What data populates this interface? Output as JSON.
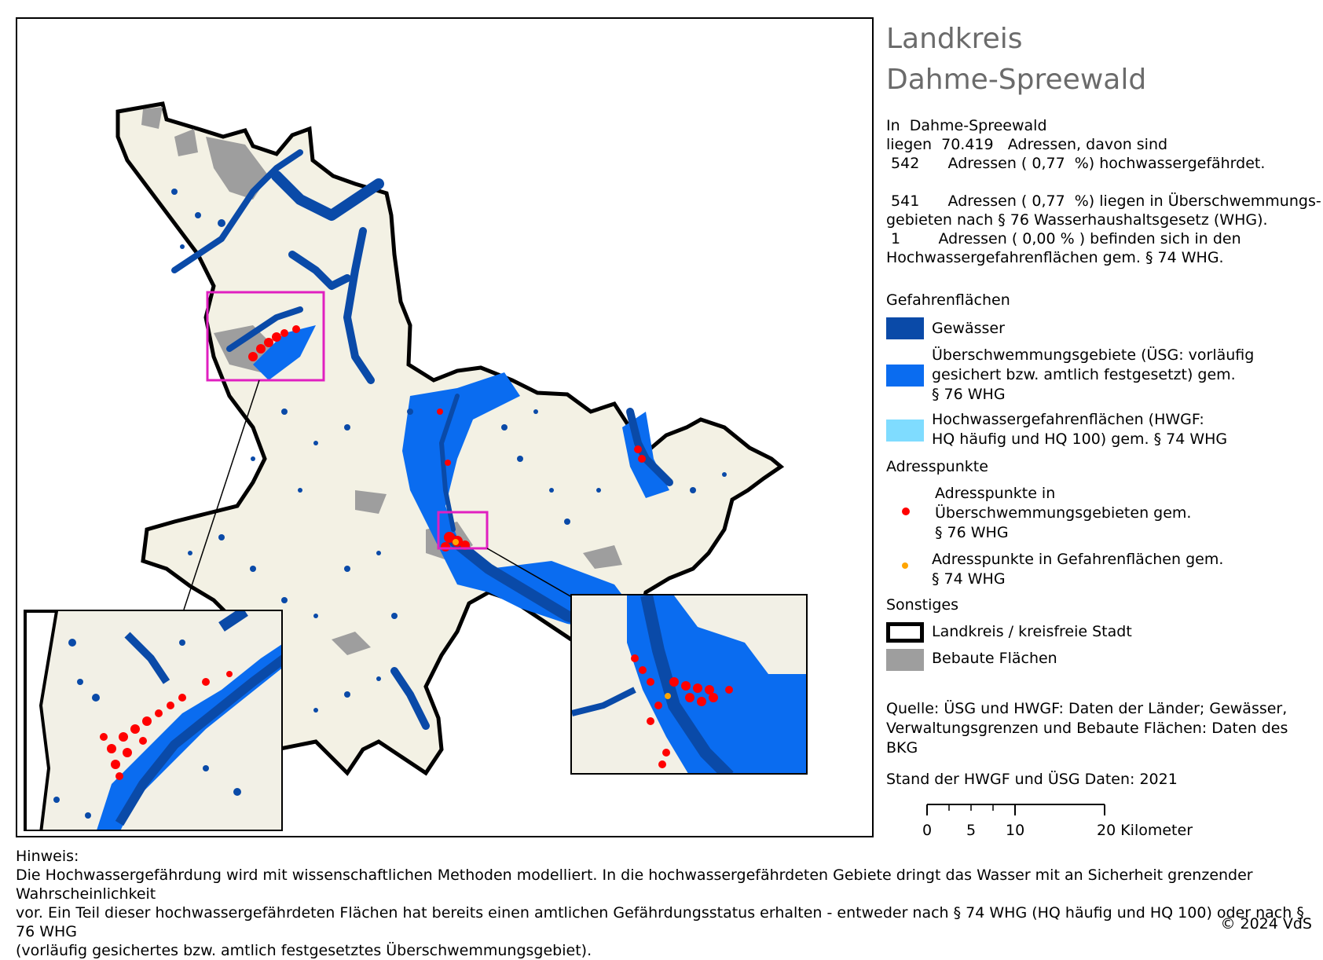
{
  "title": {
    "line1": "Landkreis",
    "line2": "Dahme-Spreewald"
  },
  "stats": {
    "line1": "In  Dahme-Spreewald",
    "line2": "liegen  70.419   Adressen, davon sind",
    "line3": " 542      Adressen ( 0,77  %) hochwassergefährdet.",
    "line4": " 541      Adressen ( 0,77  %) liegen in Überschwemmungs-",
    "line5": "gebieten nach § 76 Wasserhaushaltsgesetz (WHG).",
    "line6": " 1        Adressen ( 0,00 % ) befinden sich in den",
    "line7": "Hochwassergefahrenflächen gem. § 74 WHG."
  },
  "legend": {
    "section_hazard": "Gefahrenflächen",
    "water": "Gewässer",
    "usg_l1": "Überschwemmungsgebiete (ÜSG: vorläufig",
    "usg_l2": "gesichert bzw. amtlich festgesetzt) gem.",
    "usg_l3": "§ 76 WHG",
    "hwgf_l1": "Hochwassergefahrenflächen (HWGF:",
    "hwgf_l2": "HQ häufig und HQ 100) gem. § 74 WHG",
    "section_points": "Adresspunkte",
    "pt_usg_l1": "Adresspunkte in",
    "pt_usg_l2": "Überschwemmungsgebieten gem.",
    "pt_usg_l3": "§ 76 WHG",
    "pt_hwgf_l1": "Adresspunkte in Gefahrenflächen gem.",
    "pt_hwgf_l2": "§ 74 WHG",
    "section_other": "Sonstiges",
    "district": "Landkreis / kreisfreie Stadt",
    "built": "Bebaute Flächen",
    "source_l1": "Quelle: ÜSG und HWGF: Daten der Länder; Gewässer,",
    "source_l2": "Verwaltungsgrenzen und Bebaute Flächen: Daten des BKG",
    "status": "Stand der HWGF und ÜSG Daten:  2021"
  },
  "colors": {
    "water": "#0a4aa8",
    "usg": "#0a6cf0",
    "hwgf": "#7fdcff",
    "point_usg": "#ff0000",
    "point_hwgf": "#ffa500",
    "built": "#9e9e9e",
    "land": "#f3f1e4",
    "inset_frame": "#e020c0"
  },
  "scale": {
    "labels": [
      "0",
      "5",
      "10",
      "20 Kilometer"
    ]
  },
  "hint": {
    "label": "Hinweis:",
    "l1": "Die Hochwassergefährdung wird mit wissenschaftlichen Methoden modelliert. In die hochwassergefährdeten Gebiete dringt das Wasser mit an Sicherheit grenzender Wahrscheinlichkeit",
    "l2": "vor. Ein Teil dieser hochwassergefährdeten Flächen hat bereits einen amtlichen Gefährdungsstatus erhalten - entweder nach § 74 WHG (HQ häufig und HQ 100) oder nach § 76 WHG",
    "l3": "(vorläufig gesichertes bzw. amtlich festgesetztes Überschwemmungsgebiet)."
  },
  "copyright": "© 2024 VdS"
}
